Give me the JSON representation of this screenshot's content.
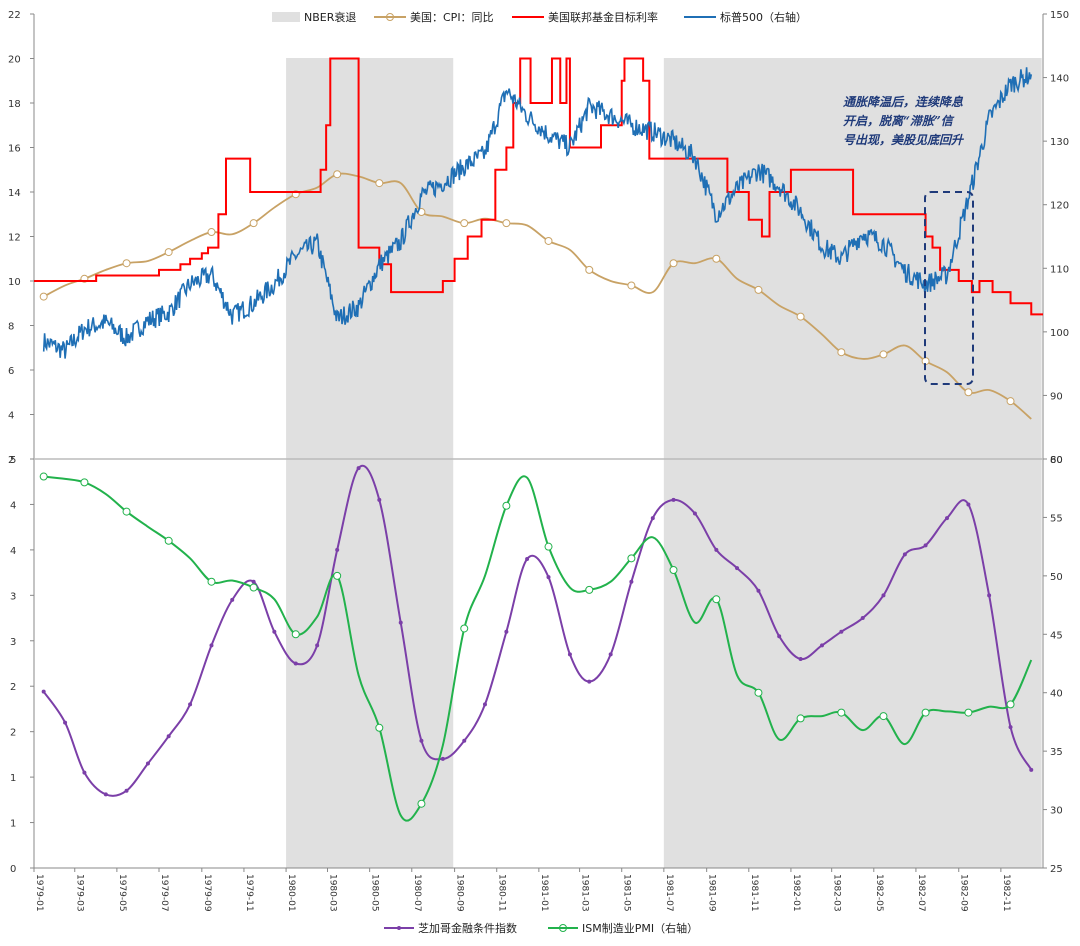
{
  "chart_data": [
    {
      "type": "line",
      "panel": "top",
      "legend": {
        "recession": "NBER衰退",
        "cpi": "美国：CPI：同比",
        "fed": "美国联邦基金目标利率",
        "spx": "标普500（右轴）"
      },
      "left_axis": {
        "range": [
          2,
          22
        ],
        "ticks": [
          "2",
          "4",
          "6",
          "8",
          "10",
          "12",
          "14",
          "16",
          "18",
          "20",
          "22"
        ]
      },
      "right_axis": {
        "range": [
          80,
          150
        ],
        "ticks": [
          "80",
          "90",
          "100",
          "110",
          "120",
          "130",
          "140",
          "150"
        ]
      },
      "recessions": [
        [
          "1980-01-01",
          "1980-07-31"
        ],
        [
          "1981-07-01",
          "1982-11-30"
        ]
      ],
      "cpi_points": [
        [
          "1979-01",
          9.3
        ],
        [
          "1979-02",
          9.8
        ],
        [
          "1979-03",
          10.1
        ],
        [
          "1979-04",
          10.5
        ],
        [
          "1979-05",
          10.8
        ],
        [
          "1979-06",
          10.9
        ],
        [
          "1979-07",
          11.3
        ],
        [
          "1979-08",
          11.8
        ],
        [
          "1979-09",
          12.2
        ],
        [
          "1979-10",
          12.1
        ],
        [
          "1979-11",
          12.6
        ],
        [
          "1979-12",
          13.3
        ],
        [
          "1980-01",
          13.9
        ],
        [
          "1980-02",
          14.2
        ],
        [
          "1980-03",
          14.8
        ],
        [
          "1980-04",
          14.7
        ],
        [
          "1980-05",
          14.4
        ],
        [
          "1980-06",
          14.4
        ],
        [
          "1980-07",
          13.1
        ],
        [
          "1980-08",
          12.9
        ],
        [
          "1980-09",
          12.6
        ],
        [
          "1980-10",
          12.8
        ],
        [
          "1980-11",
          12.6
        ],
        [
          "1980-12",
          12.5
        ],
        [
          "1981-01",
          11.8
        ],
        [
          "1981-02",
          11.4
        ],
        [
          "1981-03",
          10.5
        ],
        [
          "1981-04",
          10.0
        ],
        [
          "1981-05",
          9.8
        ],
        [
          "1981-06",
          9.5
        ],
        [
          "1981-07",
          10.8
        ],
        [
          "1981-08",
          10.8
        ],
        [
          "1981-09",
          11.0
        ],
        [
          "1981-10",
          10.1
        ],
        [
          "1981-11",
          9.6
        ],
        [
          "1981-12",
          8.9
        ],
        [
          "1982-01",
          8.4
        ],
        [
          "1982-02",
          7.6
        ],
        [
          "1982-03",
          6.8
        ],
        [
          "1982-04",
          6.5
        ],
        [
          "1982-05",
          6.7
        ],
        [
          "1982-06",
          7.1
        ],
        [
          "1982-07",
          6.4
        ],
        [
          "1982-08",
          5.9
        ],
        [
          "1982-09",
          5.0
        ],
        [
          "1982-10",
          5.1
        ],
        [
          "1982-11",
          4.6
        ],
        [
          "1982-12",
          3.8
        ]
      ],
      "fed_steps": [
        [
          "1979-01-01",
          10.0
        ],
        [
          "1979-04-01",
          10.25
        ],
        [
          "1979-07-01",
          10.5
        ],
        [
          "1979-08-01",
          10.75
        ],
        [
          "1979-08-15",
          11.0
        ],
        [
          "1979-09-01",
          11.25
        ],
        [
          "1979-09-10",
          11.5
        ],
        [
          "1979-09-25",
          13.0
        ],
        [
          "1979-10-06",
          15.5
        ],
        [
          "1979-11-10",
          14.0
        ],
        [
          "1980-02-20",
          15.0
        ],
        [
          "1980-02-28",
          17.0
        ],
        [
          "1980-03-05",
          20.0
        ],
        [
          "1980-04-15",
          11.5
        ],
        [
          "1980-05-15",
          10.75
        ],
        [
          "1980-06-01",
          9.5
        ],
        [
          "1980-07-15",
          9.5
        ],
        [
          "1980-08-15",
          10.0
        ],
        [
          "1980-09-01",
          11.0
        ],
        [
          "1980-09-20",
          12.0
        ],
        [
          "1980-10-10",
          12.75
        ],
        [
          "1980-10-30",
          15.0
        ],
        [
          "1980-11-15",
          16.0
        ],
        [
          "1980-11-25",
          18.0
        ],
        [
          "1980-12-05",
          20.0
        ],
        [
          "1980-12-20",
          18.0
        ],
        [
          "1981-01-20",
          20.0
        ],
        [
          "1981-02-01",
          18.0
        ],
        [
          "1981-02-10",
          20.0
        ],
        [
          "1981-02-15",
          16.0
        ],
        [
          "1981-04-01",
          17.0
        ],
        [
          "1981-05-01",
          19.0
        ],
        [
          "1981-05-05",
          20.0
        ],
        [
          "1981-06-01",
          19.0
        ],
        [
          "1981-06-10",
          15.5
        ],
        [
          "1981-09-15",
          15.5
        ],
        [
          "1981-10-01",
          14.0
        ],
        [
          "1981-11-01",
          12.75
        ],
        [
          "1981-11-20",
          12.0
        ],
        [
          "1981-12-01",
          14.0
        ],
        [
          "1982-01-01",
          15.0
        ],
        [
          "1982-03-01",
          15.0
        ],
        [
          "1982-04-01",
          13.0
        ],
        [
          "1982-07-15",
          12.0
        ],
        [
          "1982-07-25",
          11.5
        ],
        [
          "1982-08-05",
          10.5
        ],
        [
          "1982-09-01",
          10.0
        ],
        [
          "1982-09-20",
          9.5
        ],
        [
          "1982-10-01",
          10.0
        ],
        [
          "1982-10-20",
          9.5
        ],
        [
          "1982-11-15",
          9.0
        ],
        [
          "1982-12-15",
          8.5
        ]
      ],
      "spx_points": [
        [
          "1979-01",
          98.5
        ],
        [
          "1979-02",
          97.0
        ],
        [
          "1979-03",
          100.5
        ],
        [
          "1979-04",
          101.5
        ],
        [
          "1979-05",
          99.0
        ],
        [
          "1979-06",
          101.8
        ],
        [
          "1979-07",
          103.0
        ],
        [
          "1979-08",
          107.5
        ],
        [
          "1979-09",
          109.0
        ],
        [
          "1979-10",
          102.5
        ],
        [
          "1979-11",
          104.5
        ],
        [
          "1979-12",
          107.5
        ],
        [
          "1980-01",
          112.0
        ],
        [
          "1980-02",
          114.0
        ],
        [
          "1980-03",
          102.0
        ],
        [
          "1980-04",
          104.0
        ],
        [
          "1980-05",
          110.5
        ],
        [
          "1980-06",
          114.2
        ],
        [
          "1980-07",
          121.5
        ],
        [
          "1980-08",
          123.5
        ],
        [
          "1980-09",
          126.0
        ],
        [
          "1980-10",
          128.0
        ],
        [
          "1980-11",
          138.0
        ],
        [
          "1980-12",
          134.0
        ],
        [
          "1981-01",
          131.0
        ],
        [
          "1981-02",
          129.0
        ],
        [
          "1981-03",
          135.5
        ],
        [
          "1981-04",
          134.0
        ],
        [
          "1981-05",
          132.5
        ],
        [
          "1981-06",
          131.5
        ],
        [
          "1981-07",
          130.0
        ],
        [
          "1981-08",
          127.5
        ],
        [
          "1981-09",
          118.5
        ],
        [
          "1981-10",
          122.5
        ],
        [
          "1981-11",
          125.5
        ],
        [
          "1981-12",
          123.0
        ],
        [
          "1982-01",
          119.0
        ],
        [
          "1982-02",
          113.5
        ],
        [
          "1982-03",
          111.5
        ],
        [
          "1982-04",
          115.5
        ],
        [
          "1982-05",
          114.0
        ],
        [
          "1982-06",
          109.5
        ],
        [
          "1982-07",
          107.5
        ],
        [
          "1982-08",
          109.0
        ],
        [
          "1982-09",
          121.0
        ],
        [
          "1982-10",
          133.5
        ],
        [
          "1982-11",
          139.0
        ],
        [
          "1982-12",
          140.5
        ]
      ],
      "annotation": [
        "通胀降温后，连续降息",
        "开启，脱离“滞胀”信",
        "号出现，美股见底回升"
      ]
    },
    {
      "type": "line",
      "panel": "bottom",
      "legend": {
        "chicago": "芝加哥金融条件指数",
        "ism": "ISM制造业PMI（右轴）"
      },
      "left_axis": {
        "range": [
          0,
          5
        ],
        "ticks": [
          "0",
          "1",
          "1",
          "2",
          "2",
          "3",
          "3",
          "4",
          "4",
          "5"
        ]
      },
      "right_axis": {
        "range": [
          25,
          60
        ],
        "ticks": [
          "25",
          "30",
          "35",
          "40",
          "45",
          "50",
          "55",
          "60"
        ]
      },
      "chicago_points": [
        [
          "1979-01",
          1.94
        ],
        [
          "1979-02",
          1.6
        ],
        [
          "1979-03",
          1.05
        ],
        [
          "1979-04",
          0.81
        ],
        [
          "1979-05",
          0.85
        ],
        [
          "1979-06",
          1.15
        ],
        [
          "1979-07",
          1.45
        ],
        [
          "1979-08",
          1.8
        ],
        [
          "1979-09",
          2.45
        ],
        [
          "1979-10",
          2.95
        ],
        [
          "1979-11",
          3.15
        ],
        [
          "1979-12",
          2.6
        ],
        [
          "1980-01",
          2.25
        ],
        [
          "1980-02",
          2.45
        ],
        [
          "1980-03",
          3.5
        ],
        [
          "1980-04",
          4.4
        ],
        [
          "1980-05",
          4.05
        ],
        [
          "1980-06",
          2.7
        ],
        [
          "1980-07",
          1.4
        ],
        [
          "1980-08",
          1.2
        ],
        [
          "1980-09",
          1.4
        ],
        [
          "1980-10",
          1.8
        ],
        [
          "1980-11",
          2.6
        ],
        [
          "1980-12",
          3.4
        ],
        [
          "1981-01",
          3.2
        ],
        [
          "1981-02",
          2.35
        ],
        [
          "1981-03",
          2.05
        ],
        [
          "1981-04",
          2.35
        ],
        [
          "1981-05",
          3.15
        ],
        [
          "1981-06",
          3.85
        ],
        [
          "1981-07",
          4.05
        ],
        [
          "1981-08",
          3.9
        ],
        [
          "1981-09",
          3.5
        ],
        [
          "1981-10",
          3.3
        ],
        [
          "1981-11",
          3.05
        ],
        [
          "1981-12",
          2.55
        ],
        [
          "1982-01",
          2.3
        ],
        [
          "1982-02",
          2.45
        ],
        [
          "1982-03",
          2.6
        ],
        [
          "1982-04",
          2.75
        ],
        [
          "1982-05",
          3.0
        ],
        [
          "1982-06",
          3.45
        ],
        [
          "1982-07",
          3.55
        ],
        [
          "1982-08",
          3.85
        ],
        [
          "1982-09",
          4.0
        ],
        [
          "1982-10",
          3.0
        ],
        [
          "1982-11",
          1.55
        ],
        [
          "1982-12",
          1.08
        ]
      ],
      "ism_points": [
        [
          "1979-01",
          58.5
        ],
        [
          "1979-02",
          58.3
        ],
        [
          "1979-03",
          58.0
        ],
        [
          "1979-04",
          57.0
        ],
        [
          "1979-05",
          55.5
        ],
        [
          "1979-06",
          54.2
        ],
        [
          "1979-07",
          53.0
        ],
        [
          "1979-08",
          51.5
        ],
        [
          "1979-09",
          49.5
        ],
        [
          "1979-10",
          49.6
        ],
        [
          "1979-11",
          49.0
        ],
        [
          "1979-12",
          48.0
        ],
        [
          "1980-01",
          45.0
        ],
        [
          "1980-02",
          46.5
        ],
        [
          "1980-03",
          50.0
        ],
        [
          "1980-04",
          41.5
        ],
        [
          "1980-05",
          37.0
        ],
        [
          "1980-06",
          29.5
        ],
        [
          "1980-07",
          30.5
        ],
        [
          "1980-08",
          35.5
        ],
        [
          "1980-09",
          45.5
        ],
        [
          "1980-10",
          50.0
        ],
        [
          "1980-11",
          56.0
        ],
        [
          "1980-12",
          58.4
        ],
        [
          "1981-01",
          52.5
        ],
        [
          "1981-02",
          49.0
        ],
        [
          "1981-03",
          48.8
        ],
        [
          "1981-04",
          49.5
        ],
        [
          "1981-05",
          51.5
        ],
        [
          "1981-06",
          53.3
        ],
        [
          "1981-07",
          50.5
        ],
        [
          "1981-08",
          46.0
        ],
        [
          "1981-09",
          48.0
        ],
        [
          "1981-10",
          41.5
        ],
        [
          "1981-11",
          40.0
        ],
        [
          "1981-12",
          36.0
        ],
        [
          "1982-01",
          37.8
        ],
        [
          "1982-02",
          38.0
        ],
        [
          "1982-03",
          38.3
        ],
        [
          "1982-04",
          36.8
        ],
        [
          "1982-05",
          38.0
        ],
        [
          "1982-06",
          35.6
        ],
        [
          "1982-07",
          38.3
        ],
        [
          "1982-08",
          38.4
        ],
        [
          "1982-09",
          38.3
        ],
        [
          "1982-10",
          38.8
        ],
        [
          "1982-11",
          39.0
        ],
        [
          "1982-12",
          42.8
        ]
      ],
      "x_ticks": [
        "1979-01",
        "1979-03",
        "1979-05",
        "1979-07",
        "1979-09",
        "1979-11",
        "1980-01",
        "1980-03",
        "1980-05",
        "1980-07",
        "1980-09",
        "1980-11",
        "1981-01",
        "1981-03",
        "1981-05",
        "1981-07",
        "1981-09",
        "1981-11",
        "1982-01",
        "1982-03",
        "1982-05",
        "1982-07",
        "1982-09",
        "1982-11"
      ]
    }
  ],
  "colors": {
    "recession": "#e0e0e0",
    "cpi": "#c8a265",
    "fed": "#ff0000",
    "spx": "#1f6fb5",
    "chicago": "#7b3fa8",
    "ism": "#22b24c",
    "annotation": "#1f3a7a"
  }
}
